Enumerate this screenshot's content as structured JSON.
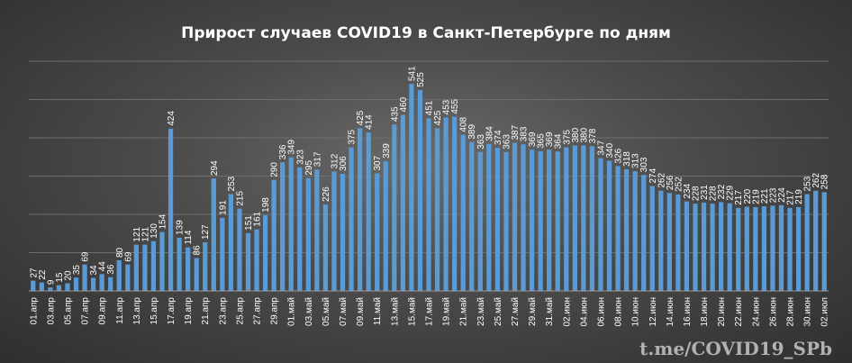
{
  "chart_data": {
    "type": "bar",
    "title": "Прирост  случаев  COVID19  в  Санкт-Петербурге  по  дням",
    "xlabel": "",
    "ylabel": "",
    "ylim": [
      0,
      600
    ],
    "grid": true,
    "legend": "none",
    "bar_color": "#5b9bd5",
    "categories": [
      "01.апр",
      "02.апр",
      "03.апр",
      "04.апр",
      "05.апр",
      "06.апр",
      "07.апр",
      "08.апр",
      "09.апр",
      "10.апр",
      "11.апр",
      "12.апр",
      "13.апр",
      "14.апр",
      "15.апр",
      "16.апр",
      "17.апр",
      "18.апр",
      "19.апр",
      "20.апр",
      "21.апр",
      "22.апр",
      "23.апр",
      "24.апр",
      "25.апр",
      "26.апр",
      "27.апр",
      "28.апр",
      "29.апр",
      "30.апр",
      "01.май",
      "02.май",
      "03.май",
      "04.май",
      "05.май",
      "06.май",
      "07.май",
      "08.май",
      "09.май",
      "10.май",
      "11.май",
      "12.май",
      "13.май",
      "14.май",
      "15.май",
      "16.май",
      "17.май",
      "18.май",
      "19.май",
      "20.май",
      "21.май",
      "22.май",
      "23.май",
      "24.май",
      "25.май",
      "26.май",
      "27.май",
      "28.май",
      "29.май",
      "30.май",
      "31.май",
      "01.июн",
      "02.июн",
      "03.июн",
      "04.июн",
      "05.июн",
      "06.июн",
      "07.июн",
      "08.июн",
      "09.июн",
      "10.июн",
      "11.июн",
      "12.июн",
      "13.июн",
      "14.июн",
      "15.июн",
      "16.июн",
      "17.июн",
      "18.июн",
      "19.июн",
      "20.июн",
      "21.июн",
      "22.июн",
      "23.июн",
      "24.июн",
      "25.июн",
      "26.июн",
      "27.июн",
      "28.июн",
      "29.июн",
      "30.июн",
      "01.июл",
      "02.июл"
    ],
    "values": [
      27,
      22,
      9,
      15,
      20,
      35,
      69,
      34,
      44,
      36,
      80,
      69,
      121,
      121,
      130,
      154,
      424,
      139,
      114,
      86,
      127,
      294,
      191,
      253,
      215,
      151,
      161,
      198,
      290,
      336,
      349,
      323,
      295,
      317,
      226,
      312,
      306,
      375,
      425,
      414,
      307,
      339,
      435,
      460,
      541,
      525,
      451,
      425,
      453,
      455,
      408,
      389,
      363,
      384,
      374,
      363,
      387,
      383,
      369,
      365,
      369,
      364,
      375,
      380,
      380,
      378,
      347,
      340,
      326,
      318,
      313,
      303,
      274,
      262,
      256,
      252,
      234,
      228,
      231,
      228,
      232,
      229,
      217,
      220,
      219,
      221,
      223,
      224,
      217,
      219,
      253,
      262,
      258
    ],
    "tick_labels": [
      "01.апр",
      "03.апр",
      "05.апр",
      "07.апр",
      "09.апр",
      "11.апр",
      "13.апр",
      "15.апр",
      "17.апр",
      "19.апр",
      "21.апр",
      "23.апр",
      "25.апр",
      "27.апр",
      "29.апр",
      "01.май",
      "03.май",
      "05.май",
      "07.май",
      "09.май",
      "11.май",
      "13.май",
      "15.май",
      "17.май",
      "19.май",
      "21.май",
      "23.май",
      "25.май",
      "27.май",
      "29.май",
      "31.май",
      "02.июн",
      "04.июн",
      "06.июн",
      "08.июн",
      "10.июн",
      "12.июн",
      "14.июн",
      "16.июн",
      "18.июн",
      "20.июн",
      "22.июн",
      "24.июн",
      "26.июн",
      "28.июн",
      "30.июн",
      "02.июл"
    ]
  },
  "watermark": "t.me/COVID19_SPb"
}
